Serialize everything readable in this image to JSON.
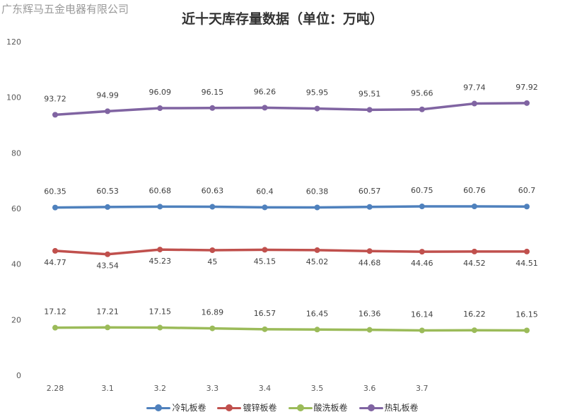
{
  "watermark": "广东辉马五金电器有限公司",
  "chart_data": {
    "type": "line",
    "title": "近十天库存量数据（单位：万吨）",
    "categories": [
      "2.28",
      "3.1",
      "3.2",
      "3.3",
      "3.4",
      "3.5",
      "3.6",
      "3.7",
      "",
      ""
    ],
    "ylim": [
      0,
      120
    ],
    "yticks": [
      0,
      20,
      40,
      60,
      80,
      100,
      120
    ],
    "legend_position": "bottom",
    "grid": false,
    "series": [
      {
        "name": "冷轧板卷",
        "color": "#4f81bd",
        "label_position": "above",
        "values": [
          60.35,
          60.53,
          60.68,
          60.63,
          60.4,
          60.38,
          60.57,
          60.75,
          60.76,
          60.7
        ],
        "labels": [
          "60.35",
          "60.53",
          "60.68",
          "60.63",
          "60.4",
          "60.38",
          "60.57",
          "60.75",
          "60.76",
          "60.7"
        ]
      },
      {
        "name": "镀锌板卷",
        "color": "#c0504d",
        "label_position": "below",
        "values": [
          44.77,
          43.54,
          45.23,
          45,
          45.15,
          45.02,
          44.68,
          44.46,
          44.52,
          44.51
        ],
        "labels": [
          "44.77",
          "43.54",
          "45.23",
          "45",
          "45.15",
          "45.02",
          "44.68",
          "44.46",
          "44.52",
          "44.51"
        ]
      },
      {
        "name": "酸洗板卷",
        "color": "#9bbb59",
        "label_position": "above",
        "values": [
          17.12,
          17.21,
          17.15,
          16.89,
          16.57,
          16.45,
          16.36,
          16.14,
          16.22,
          16.15
        ],
        "labels": [
          "17.12",
          "17.21",
          "17.15",
          "16.89",
          "16.57",
          "16.45",
          "16.36",
          "16.14",
          "16.22",
          "16.15"
        ]
      },
      {
        "name": "热轧板卷",
        "color": "#8064a2",
        "label_position": "above",
        "values": [
          93.72,
          94.99,
          96.09,
          96.15,
          96.26,
          95.95,
          95.51,
          95.66,
          97.74,
          97.92
        ],
        "labels": [
          "93.72",
          "94.99",
          "96.09",
          "96.15",
          "96.26",
          "95.95",
          "95.51",
          "95.66",
          "97.74",
          "97.92"
        ]
      }
    ]
  }
}
